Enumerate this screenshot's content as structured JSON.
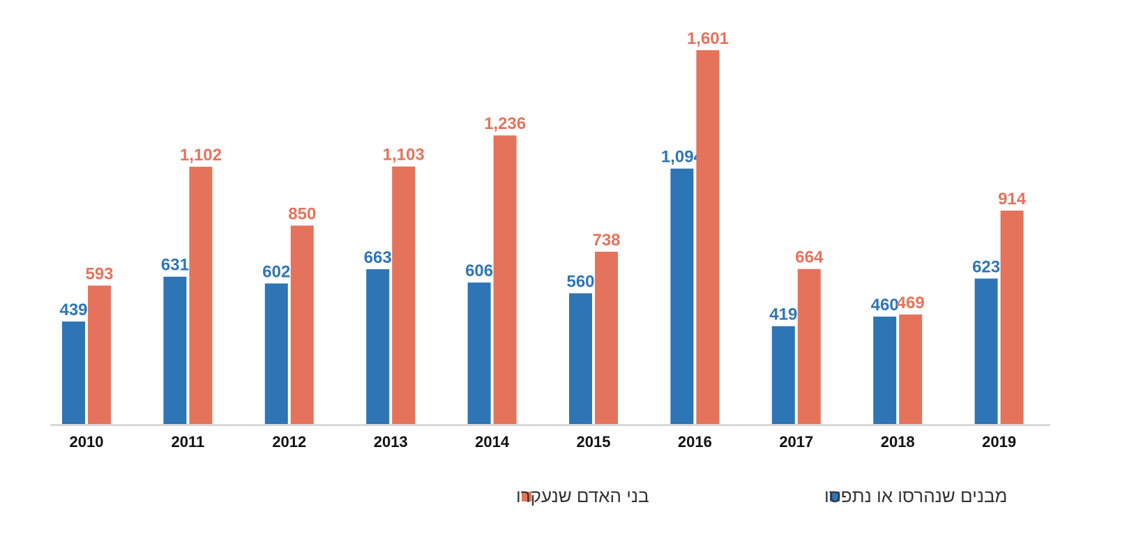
{
  "chart_data": {
    "type": "bar",
    "title": "",
    "xlabel": "",
    "ylabel": "",
    "ylim": [
      0,
      1601
    ],
    "grid": false,
    "legend_position": "bottom",
    "categories": [
      "2010",
      "2011",
      "2012",
      "2013",
      "2014",
      "2015",
      "2016",
      "2017",
      "2018",
      "2019"
    ],
    "series": [
      {
        "name": "מבנים שנהרסו או נתפסו",
        "color": "#2e75b6",
        "values": [
          439,
          631,
          602,
          663,
          606,
          560,
          1094,
          419,
          460,
          623
        ],
        "labels": [
          "439",
          "631",
          "602",
          "663",
          "606",
          "560",
          "1,094",
          "419",
          "460",
          "623"
        ]
      },
      {
        "name": "בני האדם שנעקרו",
        "color": "#e5735b",
        "values": [
          593,
          1102,
          850,
          1103,
          1236,
          738,
          1601,
          664,
          469,
          914
        ],
        "labels": [
          "593",
          "1,102",
          "850",
          "1,103",
          "1,236",
          "738",
          "1,601",
          "664",
          "469",
          "914"
        ]
      }
    ]
  }
}
